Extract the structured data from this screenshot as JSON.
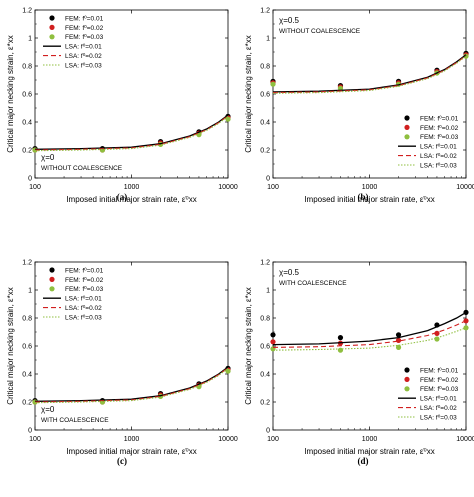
{
  "figure": {
    "panel_letters": [
      "(a)",
      "(b)",
      "(c)",
      "(d)"
    ]
  },
  "colors": {
    "fem_001": "#000000",
    "fem_002": "#d11f1f",
    "fem_003": "#8fbf3f",
    "lsa_001": "#000000",
    "lsa_002": "#d11f1f",
    "lsa_003": "#8fbf3f"
  },
  "chart_data": [
    {
      "type": "scatter",
      "panel": "(a)",
      "xlabel": "Imposed initial major strain rate, ε̇⁰xx",
      "ylabel": "Critical major necking strain, ε*xx",
      "xscale": "log",
      "xlim": [
        100,
        10000
      ],
      "ylim": [
        0,
        1.2
      ],
      "xticks": [
        "100",
        "1000",
        "10000"
      ],
      "yticks": [
        "0",
        "0.2",
        "0.4",
        "0.6",
        "0.8",
        "1",
        "1.2"
      ],
      "annotations": [
        "χ=0",
        "WITHOUT COALESCENCE"
      ],
      "annotation_position": "bottom-left",
      "legend_position": "top-left",
      "series": [
        {
          "name": "FEM: f⁰=0.01",
          "kind": "marker",
          "color_key": "fem_001",
          "x": [
            100,
            500,
            2000,
            5000,
            10000
          ],
          "y": [
            0.21,
            0.21,
            0.26,
            0.33,
            0.44
          ]
        },
        {
          "name": "FEM: f⁰=0.02",
          "kind": "marker",
          "color_key": "fem_002",
          "x": [
            100,
            500,
            2000,
            5000,
            10000
          ],
          "y": [
            0.2,
            0.2,
            0.25,
            0.32,
            0.43
          ]
        },
        {
          "name": "FEM: f⁰=0.03",
          "kind": "marker",
          "color_key": "fem_003",
          "x": [
            100,
            500,
            2000,
            5000,
            10000
          ],
          "y": [
            0.2,
            0.2,
            0.24,
            0.31,
            0.42
          ]
        },
        {
          "name": "LSA: f⁰=0.01",
          "kind": "solid",
          "color_key": "lsa_001",
          "x": [
            100,
            300,
            1000,
            2000,
            4000,
            6000,
            8000,
            10000
          ],
          "y": [
            0.205,
            0.21,
            0.22,
            0.245,
            0.3,
            0.35,
            0.4,
            0.45
          ]
        },
        {
          "name": "LSA: f⁰=0.02",
          "kind": "dashed",
          "color_key": "lsa_002",
          "x": [
            100,
            300,
            1000,
            2000,
            4000,
            6000,
            8000,
            10000
          ],
          "y": [
            0.2,
            0.205,
            0.215,
            0.24,
            0.295,
            0.345,
            0.395,
            0.445
          ]
        },
        {
          "name": "LSA: f⁰=0.03",
          "kind": "dotted",
          "color_key": "lsa_003",
          "x": [
            100,
            300,
            1000,
            2000,
            4000,
            6000,
            8000,
            10000
          ],
          "y": [
            0.195,
            0.2,
            0.21,
            0.235,
            0.29,
            0.34,
            0.39,
            0.44
          ]
        }
      ]
    },
    {
      "type": "scatter",
      "panel": "(b)",
      "xlabel": "Imposed initial major strain rate, ε̇⁰xx",
      "ylabel": "Critical major necking strain, ε*xx",
      "xscale": "log",
      "xlim": [
        100,
        10000
      ],
      "ylim": [
        0,
        1.2
      ],
      "xticks": [
        "100",
        "1000",
        "10000"
      ],
      "yticks": [
        "0",
        "0.2",
        "0.4",
        "0.6",
        "0.8",
        "1",
        "1.2"
      ],
      "annotations": [
        "χ=0.5",
        "WITHOUT COALESCENCE"
      ],
      "annotation_position": "top-left",
      "legend_position": "bottom-right",
      "series": [
        {
          "name": "FEM: f⁰=0.01",
          "kind": "marker",
          "color_key": "fem_001",
          "x": [
            100,
            500,
            2000,
            5000,
            10000
          ],
          "y": [
            0.69,
            0.66,
            0.69,
            0.77,
            0.89
          ]
        },
        {
          "name": "FEM: f⁰=0.02",
          "kind": "marker",
          "color_key": "fem_002",
          "x": [
            100,
            500,
            2000,
            5000,
            10000
          ],
          "y": [
            0.68,
            0.65,
            0.68,
            0.76,
            0.88
          ]
        },
        {
          "name": "FEM: f⁰=0.03",
          "kind": "marker",
          "color_key": "fem_003",
          "x": [
            100,
            500,
            2000,
            5000,
            10000
          ],
          "y": [
            0.67,
            0.64,
            0.67,
            0.75,
            0.87
          ]
        },
        {
          "name": "LSA: f⁰=0.01",
          "kind": "solid",
          "color_key": "lsa_001",
          "x": [
            100,
            300,
            1000,
            2000,
            4000,
            6000,
            8000,
            10000
          ],
          "y": [
            0.615,
            0.62,
            0.635,
            0.665,
            0.72,
            0.775,
            0.83,
            0.88
          ]
        },
        {
          "name": "LSA: f⁰=0.02",
          "kind": "dashed",
          "color_key": "lsa_002",
          "x": [
            100,
            300,
            1000,
            2000,
            4000,
            6000,
            8000,
            10000
          ],
          "y": [
            0.61,
            0.615,
            0.63,
            0.66,
            0.715,
            0.77,
            0.825,
            0.875
          ]
        },
        {
          "name": "LSA: f⁰=0.03",
          "kind": "dotted",
          "color_key": "lsa_003",
          "x": [
            100,
            300,
            1000,
            2000,
            4000,
            6000,
            8000,
            10000
          ],
          "y": [
            0.605,
            0.61,
            0.625,
            0.655,
            0.71,
            0.765,
            0.82,
            0.87
          ]
        }
      ]
    },
    {
      "type": "scatter",
      "panel": "(c)",
      "xlabel": "Imposed initial major strain rate, ε̇⁰xx",
      "ylabel": "Critical major necking strain, ε*xx",
      "xscale": "log",
      "xlim": [
        100,
        10000
      ],
      "ylim": [
        0,
        1.2
      ],
      "xticks": [
        "100",
        "1000",
        "10000"
      ],
      "yticks": [
        "0",
        "0.2",
        "0.4",
        "0.6",
        "0.8",
        "1",
        "1.2"
      ],
      "annotations": [
        "χ=0",
        "WITH COALESCENCE"
      ],
      "annotation_position": "bottom-left",
      "legend_position": "top-right",
      "series": [
        {
          "name": "FEM: f⁰=0.01",
          "kind": "marker",
          "color_key": "fem_001",
          "x": [
            100,
            500,
            2000,
            5000,
            10000
          ],
          "y": [
            0.21,
            0.21,
            0.26,
            0.33,
            0.44
          ]
        },
        {
          "name": "FEM: f⁰=0.02",
          "kind": "marker",
          "color_key": "fem_002",
          "x": [
            100,
            500,
            2000,
            5000,
            10000
          ],
          "y": [
            0.2,
            0.2,
            0.25,
            0.32,
            0.43
          ]
        },
        {
          "name": "FEM: f⁰=0.03",
          "kind": "marker",
          "color_key": "fem_003",
          "x": [
            100,
            500,
            2000,
            5000,
            10000
          ],
          "y": [
            0.2,
            0.2,
            0.24,
            0.31,
            0.42
          ]
        },
        {
          "name": "LSA: f⁰=0.01",
          "kind": "solid",
          "color_key": "lsa_001",
          "x": [
            100,
            300,
            1000,
            2000,
            4000,
            6000,
            8000,
            10000
          ],
          "y": [
            0.205,
            0.21,
            0.22,
            0.245,
            0.3,
            0.35,
            0.4,
            0.45
          ]
        },
        {
          "name": "LSA: f⁰=0.02",
          "kind": "dashed",
          "color_key": "lsa_002",
          "x": [
            100,
            300,
            1000,
            2000,
            4000,
            6000,
            8000,
            10000
          ],
          "y": [
            0.2,
            0.205,
            0.215,
            0.24,
            0.295,
            0.345,
            0.395,
            0.445
          ]
        },
        {
          "name": "LSA: f⁰=0.03",
          "kind": "dotted",
          "color_key": "lsa_003",
          "x": [
            100,
            300,
            1000,
            2000,
            4000,
            6000,
            8000,
            10000
          ],
          "y": [
            0.195,
            0.2,
            0.21,
            0.235,
            0.29,
            0.34,
            0.39,
            0.44
          ]
        }
      ]
    },
    {
      "type": "scatter",
      "panel": "(d)",
      "xlabel": "Imposed initial major strain rate, ε̇⁰xx",
      "ylabel": "Critical major necking strain, ε*xx",
      "xscale": "log",
      "xlim": [
        100,
        10000
      ],
      "ylim": [
        0,
        1.2
      ],
      "xticks": [
        "100",
        "1000",
        "10000"
      ],
      "yticks": [
        "0",
        "0.2",
        "0.4",
        "0.6",
        "0.8",
        "1",
        "1.2"
      ],
      "annotations": [
        "χ=0.5",
        "WITH COALESCENCE"
      ],
      "annotation_position": "top-left",
      "legend_position": "bottom-right",
      "series": [
        {
          "name": "FEM: f⁰=0.01",
          "kind": "marker",
          "color_key": "fem_001",
          "x": [
            100,
            500,
            2000,
            5000,
            10000
          ],
          "y": [
            0.68,
            0.66,
            0.68,
            0.75,
            0.84
          ]
        },
        {
          "name": "FEM: f⁰=0.02",
          "kind": "marker",
          "color_key": "fem_002",
          "x": [
            100,
            500,
            2000,
            5000,
            10000
          ],
          "y": [
            0.63,
            0.62,
            0.64,
            0.69,
            0.78
          ]
        },
        {
          "name": "FEM: f⁰=0.03",
          "kind": "marker",
          "color_key": "fem_003",
          "x": [
            100,
            500,
            2000,
            5000,
            10000
          ],
          "y": [
            0.58,
            0.57,
            0.59,
            0.65,
            0.73
          ]
        },
        {
          "name": "LSA: f⁰=0.01",
          "kind": "solid",
          "color_key": "lsa_001",
          "x": [
            100,
            300,
            1000,
            2000,
            4000,
            6000,
            8000,
            10000
          ],
          "y": [
            0.61,
            0.615,
            0.635,
            0.66,
            0.71,
            0.76,
            0.8,
            0.84
          ]
        },
        {
          "name": "LSA: f⁰=0.02",
          "kind": "dashed",
          "color_key": "lsa_002",
          "x": [
            100,
            300,
            1000,
            2000,
            4000,
            6000,
            8000,
            10000
          ],
          "y": [
            0.59,
            0.595,
            0.61,
            0.635,
            0.675,
            0.715,
            0.75,
            0.78
          ]
        },
        {
          "name": "LSA: f⁰=0.03",
          "kind": "dotted",
          "color_key": "lsa_003",
          "x": [
            100,
            300,
            1000,
            2000,
            4000,
            6000,
            8000,
            10000
          ],
          "y": [
            0.57,
            0.575,
            0.585,
            0.605,
            0.64,
            0.675,
            0.705,
            0.73
          ]
        }
      ]
    }
  ]
}
